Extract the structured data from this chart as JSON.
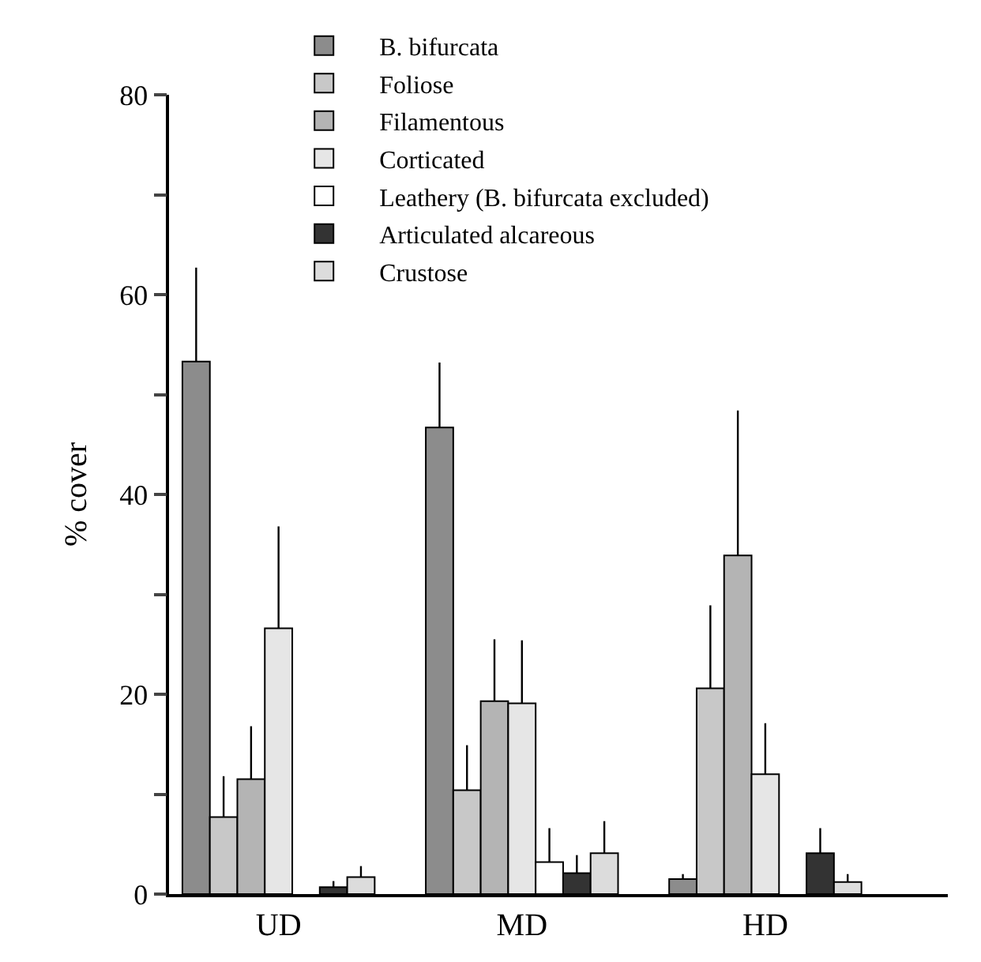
{
  "chart_data": {
    "type": "bar",
    "ylabel": "% cover",
    "categories": [
      "UD",
      "MD",
      "HD"
    ],
    "series": [
      {
        "name": "B. bifurcata",
        "color": "#8c8c8c",
        "values": [
          53.3,
          46.7,
          1.5
        ],
        "errors": [
          [
            53.3,
            62.7
          ],
          [
            46.7,
            53.2
          ],
          [
            1.5,
            2.0
          ]
        ]
      },
      {
        "name": "Foliose",
        "color": "#c8c8c8",
        "values": [
          7.7,
          10.4,
          20.6
        ],
        "errors": [
          [
            7.7,
            11.8
          ],
          [
            10.4,
            14.9
          ],
          [
            20.6,
            28.9
          ]
        ]
      },
      {
        "name": "Filamentous",
        "color": "#b4b4b4",
        "values": [
          11.5,
          19.3,
          33.9
        ],
        "errors": [
          [
            11.5,
            16.8
          ],
          [
            19.3,
            25.5
          ],
          [
            33.9,
            48.4
          ]
        ]
      },
      {
        "name": "Corticated",
        "color": "#e6e6e6",
        "values": [
          26.6,
          19.1,
          12.0
        ],
        "errors": [
          [
            26.6,
            36.8
          ],
          [
            19.1,
            25.4
          ],
          [
            12.0,
            17.1
          ]
        ]
      },
      {
        "name": "Leathery (B. bifurcata excluded)",
        "color": "#ffffff",
        "values": [
          null,
          3.2,
          null
        ],
        "errors": [
          null,
          [
            3.2,
            6.6
          ],
          null
        ]
      },
      {
        "name": "Articulated alcareous",
        "color": "#333333",
        "values": [
          0.7,
          2.1,
          4.1
        ],
        "errors": [
          [
            0.7,
            1.3
          ],
          [
            2.1,
            3.9
          ],
          [
            4.1,
            6.6
          ]
        ]
      },
      {
        "name": "Crustose",
        "color": "#dcdcdc",
        "values": [
          1.7,
          4.1,
          1.2
        ],
        "errors": [
          [
            1.7,
            2.8
          ],
          [
            4.1,
            7.3
          ],
          [
            1.2,
            2.0
          ]
        ]
      }
    ],
    "ylim": [
      0,
      80
    ],
    "yticks": [
      0,
      {
        "value": 10,
        "label": null
      },
      20,
      {
        "value": 30,
        "label": null
      },
      40,
      {
        "value": 50,
        "label": null
      },
      60,
      {
        "value": 70,
        "label": null
      },
      80
    ],
    "grid": false,
    "legend": "top"
  }
}
